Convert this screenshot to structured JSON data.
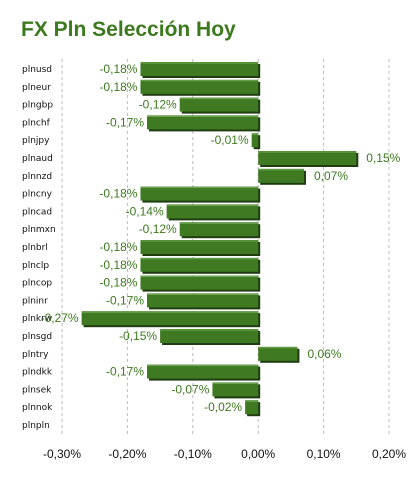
{
  "title": "FX Pln Selección Hoy",
  "colors": {
    "title": "#3d7a1f",
    "bar": "#3f7a23",
    "bar_shadow": "#1f3d10",
    "value_label": "#3d7a1f",
    "grid": "#bbbbbb"
  },
  "chart_data": {
    "type": "bar",
    "orientation": "horizontal",
    "title": "FX Pln Selección Hoy",
    "categories": [
      "plnusd",
      "plneur",
      "plngbp",
      "plnchf",
      "plnjpy",
      "plnaud",
      "plnnzd",
      "plncny",
      "plncad",
      "plnmxn",
      "plnbrl",
      "plnclp",
      "plncop",
      "plninr",
      "plnkrw",
      "plnsgd",
      "plntry",
      "plndkk",
      "plnsek",
      "plnnok",
      "plnpln"
    ],
    "values": [
      -0.18,
      -0.18,
      -0.12,
      -0.17,
      -0.01,
      0.15,
      0.07,
      -0.18,
      -0.14,
      -0.12,
      -0.18,
      -0.18,
      -0.18,
      -0.17,
      -0.27,
      -0.15,
      0.06,
      -0.17,
      -0.07,
      -0.02,
      null
    ],
    "value_labels": [
      "-0,18%",
      "-0,18%",
      "-0,12%",
      "-0,17%",
      "-0,01%",
      "0,15%",
      "0,07%",
      "-0,18%",
      "-0,14%",
      "-0,12%",
      "-0,18%",
      "-0,18%",
      "-0,18%",
      "-0,17%",
      "-0,27%",
      "-0,15%",
      "0,06%",
      "-0,17%",
      "-0,07%",
      "-0,02%",
      ""
    ],
    "xlim": [
      -0.3,
      0.2
    ],
    "ticks": [
      -0.3,
      -0.2,
      -0.1,
      0.0,
      0.1,
      0.2
    ],
    "tick_labels": [
      "-0,30%",
      "-0,20%",
      "-0,10%",
      "0,00%",
      "0,10%",
      "0,20%"
    ],
    "grid": true,
    "xlabel": "",
    "ylabel": ""
  }
}
